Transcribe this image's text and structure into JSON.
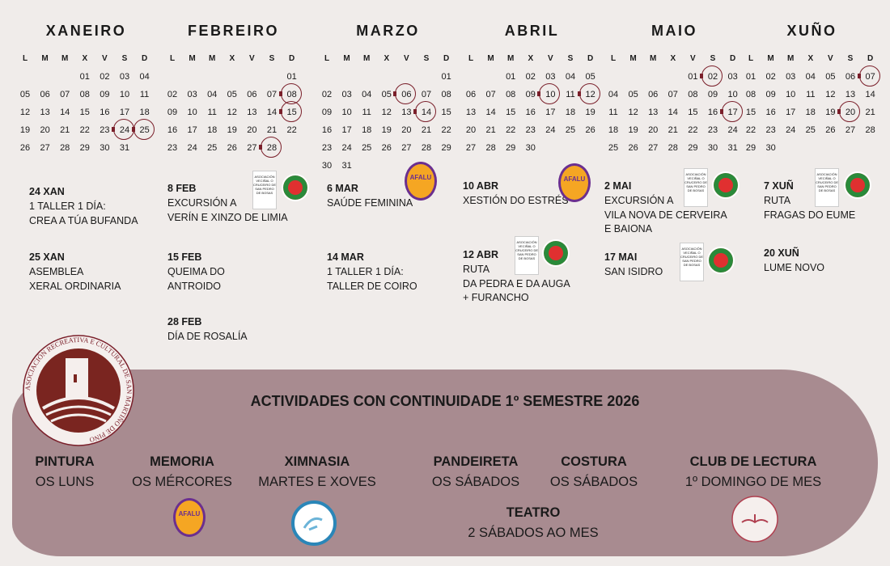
{
  "weekdays": [
    "L",
    "M",
    "M",
    "X",
    "V",
    "S",
    "D"
  ],
  "months": [
    {
      "name": "XANEIRO",
      "offset": 3,
      "days": 31,
      "circled": [
        24,
        25
      ]
    },
    {
      "name": "FEBREIRO",
      "offset": 6,
      "days": 28,
      "circled": [
        8,
        15,
        28
      ]
    },
    {
      "name": "MARZO",
      "offset": 6,
      "days": 31,
      "circled": [
        6,
        14
      ]
    },
    {
      "name": "ABRIL",
      "offset": 2,
      "days": 30,
      "circled": [
        10,
        12
      ]
    },
    {
      "name": "MAIO",
      "offset": 4,
      "days": 31,
      "circled": [
        2,
        17
      ]
    },
    {
      "name": "XUÑO",
      "offset": 0,
      "days": 30,
      "circled": [
        7,
        20
      ]
    }
  ],
  "events": [
    {
      "date": "24 XAN",
      "lines": [
        "1 TALLER 1 DÍA:",
        "CREA A TÚA BUFANDA"
      ]
    },
    {
      "date": "25 XAN",
      "lines": [
        "ASEMBLEA",
        "XERAL ORDINARIA"
      ]
    },
    {
      "date": "8 FEB",
      "lines": [
        "EXCURSIÓN A",
        "VERÍN E XINZO DE LIMIA"
      ]
    },
    {
      "date": "15 FEB",
      "lines": [
        "QUEIMA DO",
        "ANTROIDO"
      ]
    },
    {
      "date": "28 FEB",
      "lines": [
        "DÍA DE ROSALÍA"
      ]
    },
    {
      "date": "6 MAR",
      "lines": [
        "SAÚDE FEMININA"
      ]
    },
    {
      "date": "14 MAR",
      "lines": [
        "1 TALLER 1 DÍA:",
        "TALLER DE COIRO"
      ]
    },
    {
      "date": "10 ABR",
      "lines": [
        "XESTIÓN DO ESTRÉS"
      ]
    },
    {
      "date": "12 ABR",
      "lines": [
        "RUTA",
        "DA PEDRA E DA AUGA",
        "+ FURANCHO"
      ]
    },
    {
      "date": "2 MAI",
      "lines": [
        "EXCURSIÓN A",
        "VILA NOVA DE CERVEIRA",
        "E BAIONA"
      ]
    },
    {
      "date": "17 MAI",
      "lines": [
        "SAN ISIDRO"
      ]
    },
    {
      "date": "7 XUÑ",
      "lines": [
        "RUTA",
        "FRAGAS DO EUME"
      ]
    },
    {
      "date": "20 XUÑ",
      "lines": [
        "LUME NOVO"
      ]
    }
  ],
  "logos": {
    "afalu": "AFALU",
    "afalu_sub": "ALZHEIMER LUGO",
    "vecinal": "ASOCIACIÓN VECIÑAL O CRUCEIRO DE SAN PEDRO DE BOSAS",
    "asociacion": "ASOCIACIÓN VECIÑAL",
    "terra": "TERRA CHÁ",
    "biblioteca": "BIBLIOTECA RURAL SAN MARTIÑO DE PINO",
    "main": "ASOCIACIÓN RECREATIVA E CULTURAL DE SAN MARTIÑO DE PINO"
  },
  "continuity": {
    "title": "ACTIVIDADES CON CONTINUIDADE 1º SEMESTRE 2026",
    "activities": [
      {
        "name": "PINTURA",
        "when": "OS LUNS"
      },
      {
        "name": "MEMORIA",
        "when": "OS MÉRCORES"
      },
      {
        "name": "XIMNASIA",
        "when": "MARTES E XOVES"
      },
      {
        "name": "PANDEIRETA",
        "when": "OS SÁBADOS"
      },
      {
        "name": "COSTURA",
        "when": "OS SÁBADOS"
      },
      {
        "name": "CLUB DE LECTURA",
        "when": "1º DOMINGO DE MES"
      },
      {
        "name": "TEATRO",
        "when": "2 SÁBADOS AO MES"
      }
    ]
  },
  "colors": {
    "accent": "#7a1f2a",
    "panel": "#a88b90",
    "background": "#f0ecea"
  }
}
